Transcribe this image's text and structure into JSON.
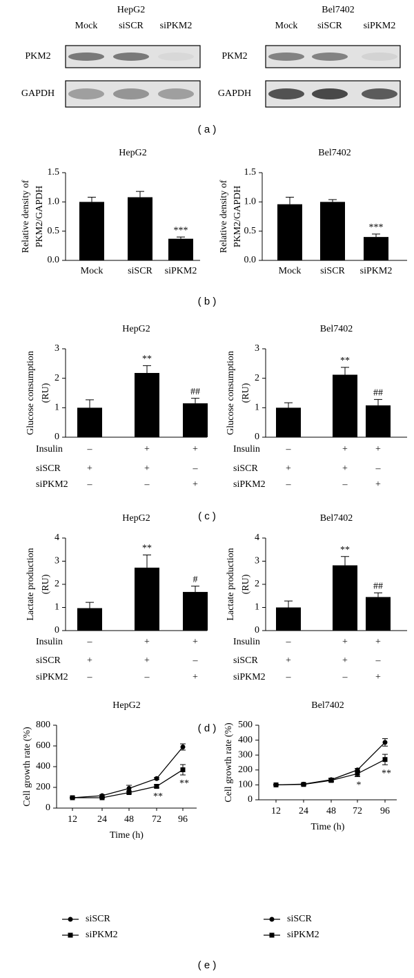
{
  "panel_labels": [
    "( a )",
    "( b )",
    "( c )",
    "( d )",
    "( e )"
  ],
  "blots": [
    {
      "title": "HepG2",
      "lanes": [
        "Mock",
        "siSCR",
        "siPKM2"
      ],
      "rows": [
        "PKM2",
        "GAPDH"
      ]
    },
    {
      "title": "Bel7402",
      "lanes": [
        "Mock",
        "siSCR",
        "siPKM2"
      ],
      "rows": [
        "PKM2",
        "GAPDH"
      ]
    }
  ],
  "chart_data": [
    {
      "type": "bar",
      "title": "HepG2",
      "ylabel": [
        "Relative density of",
        "PKM2/GAPDH"
      ],
      "categories": [
        "Mock",
        "siSCR",
        "siPKM2"
      ],
      "values": [
        1.0,
        1.08,
        0.37
      ],
      "errors": [
        0.08,
        0.1,
        0.03
      ],
      "annotations": [
        null,
        null,
        "***"
      ],
      "color": "#000000",
      "ylim": [
        0,
        1.5
      ],
      "yticks": [
        {
          "value": 0,
          "label": "0.0"
        },
        0.5,
        {
          "value": 1,
          "label": "1.0"
        },
        1.5
      ]
    },
    {
      "type": "bar",
      "title": "Bel7402",
      "ylabel": [
        "Relative density of",
        "PKM2/GAPDH"
      ],
      "categories": [
        "Mock",
        "siSCR",
        "siPKM2"
      ],
      "values": [
        0.96,
        1.0,
        0.4
      ],
      "errors": [
        0.12,
        0.04,
        0.05
      ],
      "annotations": [
        null,
        null,
        "***"
      ],
      "color": "#000000",
      "ylim": [
        0,
        1.5
      ],
      "yticks": [
        {
          "value": 0,
          "label": "0.0"
        },
        0.5,
        {
          "value": 1,
          "label": "1.0"
        },
        1.5
      ]
    },
    {
      "type": "bar",
      "title": "HepG2",
      "ylabel": [
        "Glucose consumption",
        "(RU)"
      ],
      "values": [
        1.0,
        2.18,
        1.15
      ],
      "errors": [
        0.27,
        0.25,
        0.17
      ],
      "annotations": [
        null,
        "**",
        "##"
      ],
      "color": "#000000",
      "ylim": [
        0,
        3
      ],
      "yticks": [
        0,
        1,
        2,
        3
      ],
      "treatments": [
        {
          "name": "Insulin",
          "signs": [
            "–",
            "+",
            "+"
          ]
        },
        {
          "name": "siSCR",
          "signs": [
            "+",
            "+",
            "–"
          ]
        },
        {
          "name": "siPKM2",
          "signs": [
            "–",
            "–",
            "+"
          ]
        }
      ]
    },
    {
      "type": "bar",
      "title": "Bel7402",
      "ylabel": [
        "Glucose consumption",
        "(RU)"
      ],
      "values": [
        1.0,
        2.12,
        1.08
      ],
      "errors": [
        0.17,
        0.25,
        0.2
      ],
      "annotations": [
        null,
        "**",
        "##"
      ],
      "color": "#000000",
      "ylim": [
        0,
        3
      ],
      "yticks": [
        0,
        1,
        2,
        3
      ],
      "treatments": [
        {
          "name": "Insulin",
          "signs": [
            "–",
            "+",
            "+"
          ]
        },
        {
          "name": "siSCR",
          "signs": [
            "+",
            "+",
            "–"
          ]
        },
        {
          "name": "siPKM2",
          "signs": [
            "–",
            "–",
            "+"
          ]
        }
      ]
    },
    {
      "type": "bar",
      "title": "HepG2",
      "ylabel": [
        "Lactate production",
        "(RU)"
      ],
      "values": [
        0.97,
        2.72,
        1.67
      ],
      "errors": [
        0.25,
        0.55,
        0.25
      ],
      "annotations": [
        null,
        "**",
        "#"
      ],
      "color": "#000000",
      "ylim": [
        0,
        4
      ],
      "yticks": [
        0,
        1,
        2,
        3,
        4
      ],
      "treatments": [
        {
          "name": "Insulin",
          "signs": [
            "–",
            "+",
            "+"
          ]
        },
        {
          "name": "siSCR",
          "signs": [
            "+",
            "+",
            "–"
          ]
        },
        {
          "name": "siPKM2",
          "signs": [
            "–",
            "–",
            "+"
          ]
        }
      ]
    },
    {
      "type": "bar",
      "title": "Bel7402",
      "ylabel": [
        "Lactate production",
        "(RU)"
      ],
      "values": [
        1.0,
        2.82,
        1.45
      ],
      "errors": [
        0.28,
        0.38,
        0.18
      ],
      "annotations": [
        null,
        "**",
        "##"
      ],
      "color": "#000000",
      "ylim": [
        0,
        4
      ],
      "yticks": [
        0,
        1,
        2,
        3,
        4
      ],
      "treatments": [
        {
          "name": "Insulin",
          "signs": [
            "–",
            "+",
            "+"
          ]
        },
        {
          "name": "siSCR",
          "signs": [
            "+",
            "+",
            "–"
          ]
        },
        {
          "name": "siPKM2",
          "signs": [
            "–",
            "–",
            "+"
          ]
        }
      ]
    },
    {
      "type": "line",
      "title": "HepG2",
      "ylabel": "Cell growth rate (%)",
      "xlabel": "Time (h)",
      "categories": [
        "12",
        "24",
        "48",
        "72",
        "96"
      ],
      "ylim": [
        0,
        800
      ],
      "yticks": [
        0,
        200,
        400,
        600,
        800
      ],
      "series": [
        {
          "name": "siSCR",
          "marker": "circle",
          "color": "#000000",
          "values": [
            100,
            120,
            190,
            285,
            590
          ],
          "errors": [
            5,
            10,
            30,
            10,
            30
          ],
          "annotations": [
            null,
            null,
            null,
            null,
            null
          ]
        },
        {
          "name": "siPKM2",
          "marker": "square",
          "color": "#000000",
          "values": [
            100,
            100,
            150,
            210,
            370
          ],
          "errors": [
            5,
            5,
            10,
            15,
            50
          ],
          "annotations": [
            null,
            null,
            null,
            "**",
            "**"
          ]
        }
      ]
    },
    {
      "type": "line",
      "title": "Bel7402",
      "ylabel": "Cell growth rate (%)",
      "xlabel": "Time (h)",
      "categories": [
        "12",
        "24",
        "48",
        "72",
        "96"
      ],
      "ylim": [
        0,
        500
      ],
      "yticks": [
        0,
        100,
        200,
        300,
        400,
        500
      ],
      "series": [
        {
          "name": "siSCR",
          "marker": "circle",
          "color": "#000000",
          "values": [
            100,
            105,
            135,
            200,
            385
          ],
          "errors": [
            3,
            5,
            10,
            10,
            25
          ],
          "annotations": [
            null,
            null,
            null,
            null,
            null
          ]
        },
        {
          "name": "siPKM2",
          "marker": "square",
          "color": "#000000",
          "values": [
            100,
            103,
            130,
            175,
            270
          ],
          "errors": [
            3,
            5,
            10,
            20,
            35
          ],
          "annotations": [
            null,
            null,
            null,
            "*",
            "**"
          ]
        }
      ]
    }
  ]
}
